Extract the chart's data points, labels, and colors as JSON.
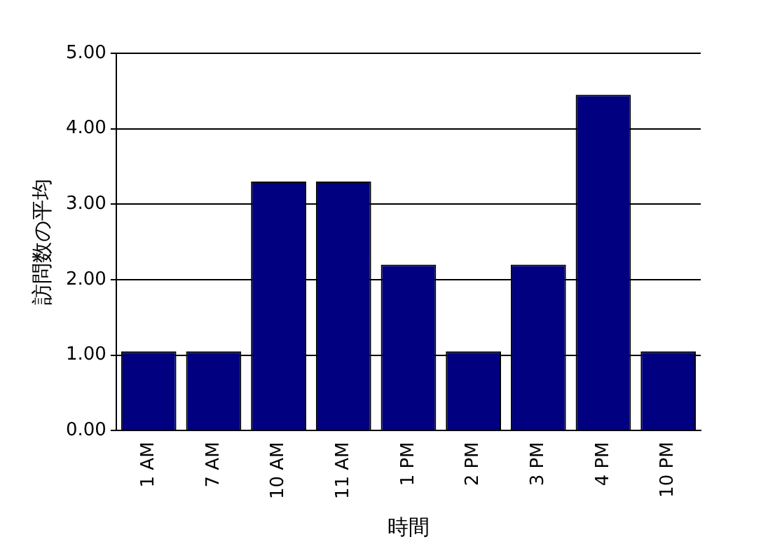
{
  "chart_data": {
    "type": "bar",
    "xlabel": "時間",
    "ylabel": "訪問数の平均",
    "categories": [
      "1 AM",
      "7 AM",
      "10 AM",
      "11 AM",
      "1 PM",
      "2 PM",
      "3 PM",
      "4 PM",
      "10 PM"
    ],
    "values": [
      1.05,
      1.05,
      3.3,
      3.3,
      2.2,
      1.05,
      2.2,
      4.45,
      1.05
    ],
    "color": "#000080",
    "ylim": [
      0,
      5
    ],
    "yticks": [
      {
        "value": 0,
        "label": "0.00"
      },
      {
        "value": 1,
        "label": "1.00"
      },
      {
        "value": 2,
        "label": "2.00"
      },
      {
        "value": 3,
        "label": "3.00"
      },
      {
        "value": 4,
        "label": "4.00"
      },
      {
        "value": 5,
        "label": "5.00"
      }
    ],
    "grid": "y"
  }
}
